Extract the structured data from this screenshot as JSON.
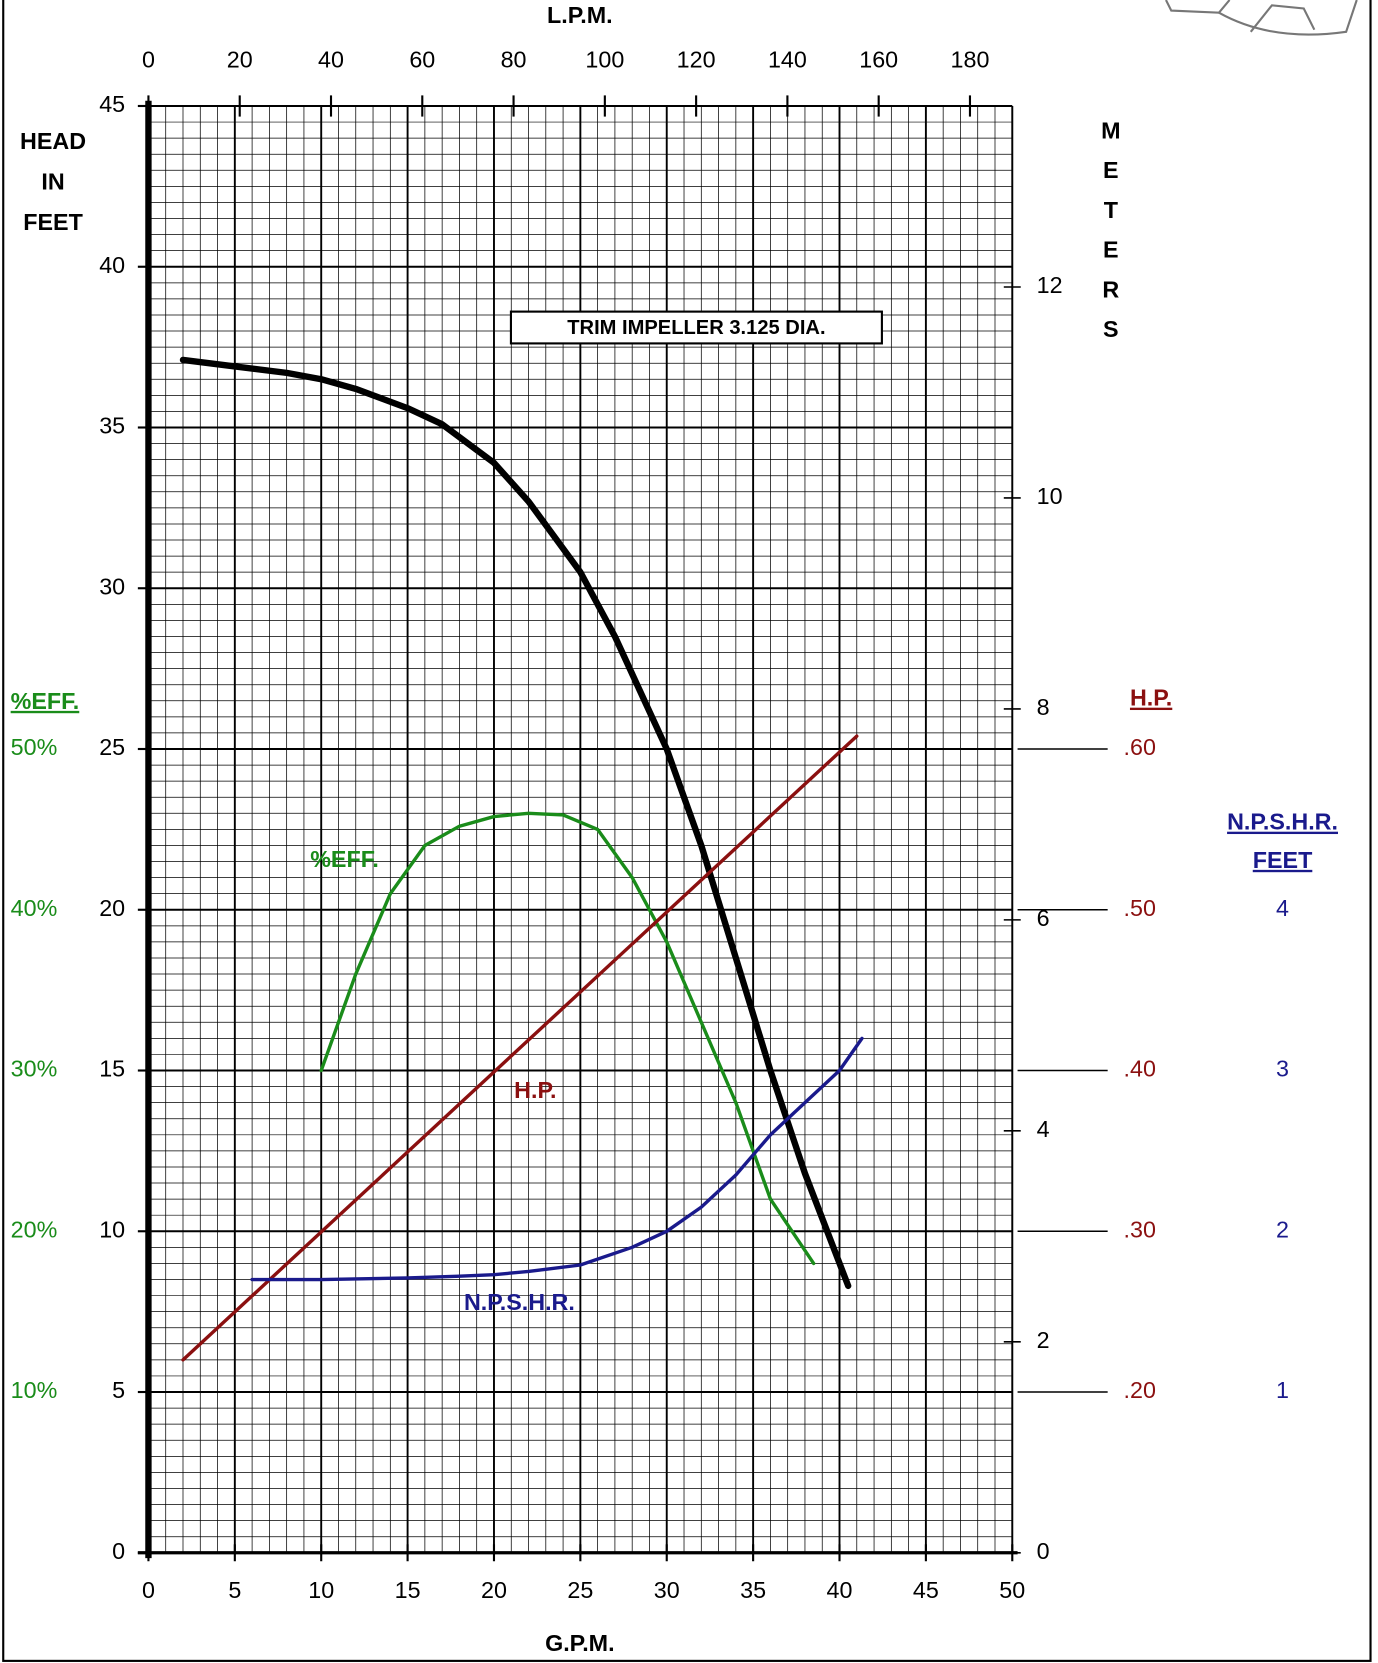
{
  "chart_data": {
    "type": "line",
    "annotation": "TRIM IMPELLER 3.125 DIA.",
    "x_label": "G.P.M.",
    "xlim": [
      0,
      50
    ],
    "xticks": [
      0,
      5,
      10,
      15,
      20,
      25,
      30,
      35,
      40,
      45,
      50
    ],
    "x2_label": "L.P.M.",
    "x2lim": [
      0,
      189.27
    ],
    "x2ticks": [
      0,
      20,
      40,
      60,
      80,
      100,
      120,
      140,
      160,
      180
    ],
    "y_label": [
      "HEAD",
      "IN",
      "FEET"
    ],
    "ylim": [
      0,
      45
    ],
    "yticks": [
      0,
      5,
      10,
      15,
      20,
      25,
      30,
      35,
      40,
      45
    ],
    "y2_label": "METERS",
    "y2lim": [
      0,
      13.716
    ],
    "y2ticks": [
      0,
      2,
      4,
      6,
      8,
      10,
      12
    ],
    "eff_axis": {
      "label": "%EFF.",
      "color": "#1a8c1a",
      "lim": [
        0,
        90
      ],
      "ticks": [
        {
          "value": 10,
          "label": "10%"
        },
        {
          "value": 20,
          "label": "20%"
        },
        {
          "value": 30,
          "label": "30%"
        },
        {
          "value": 40,
          "label": "40%"
        },
        {
          "value": 50,
          "label": "50%"
        }
      ]
    },
    "hp_axis": {
      "label": "H.P.",
      "color": "#8b1010",
      "lim": [
        0.1,
        1.0
      ],
      "ticks": [
        {
          "value": 0.2,
          "label": ".20"
        },
        {
          "value": 0.3,
          "label": ".30"
        },
        {
          "value": 0.4,
          "label": ".40"
        },
        {
          "value": 0.5,
          "label": ".50"
        },
        {
          "value": 0.6,
          "label": ".60"
        }
      ]
    },
    "npshr_axis": {
      "label": [
        "N.P.S.H.R.",
        "FEET"
      ],
      "color": "#1a1a8c",
      "lim": [
        0,
        9
      ],
      "ticks": [
        1,
        2,
        3,
        4
      ]
    },
    "grid": true,
    "series": [
      {
        "color": "#000000",
        "axis": "y",
        "x": [
          2,
          5,
          8,
          10,
          12,
          15,
          17,
          20,
          22,
          25,
          27,
          30,
          32,
          34,
          36,
          38,
          40.5
        ],
        "values": [
          37.1,
          36.9,
          36.7,
          36.5,
          36.2,
          35.6,
          35.1,
          33.9,
          32.7,
          30.5,
          28.5,
          25,
          22,
          18.5,
          15,
          11.8,
          8.3
        ]
      },
      {
        "name": "%EFF.",
        "color": "#1a8c1a",
        "axis": "eff",
        "x": [
          10,
          12,
          14,
          16,
          18,
          20,
          22,
          24,
          26,
          28,
          30,
          32,
          34,
          36,
          38.5
        ],
        "values": [
          30,
          36,
          41,
          44,
          45.2,
          45.8,
          46,
          45.9,
          45,
          42,
          38,
          33,
          28,
          22,
          18
        ]
      },
      {
        "name": "H.P.",
        "color": "#8b1010",
        "axis": "hp",
        "x": [
          2,
          41
        ],
        "values": [
          0.22,
          0.608
        ]
      },
      {
        "name": "N.P.S.H.R.",
        "color": "#1a1a8c",
        "axis": "npshr",
        "x": [
          6,
          10,
          15,
          18,
          20,
          22,
          25,
          28,
          30,
          32,
          34,
          36,
          38,
          40,
          41.3
        ],
        "values": [
          1.7,
          1.7,
          1.71,
          1.72,
          1.73,
          1.75,
          1.79,
          1.9,
          2.0,
          2.15,
          2.35,
          2.6,
          2.8,
          3.0,
          3.2
        ]
      }
    ]
  }
}
